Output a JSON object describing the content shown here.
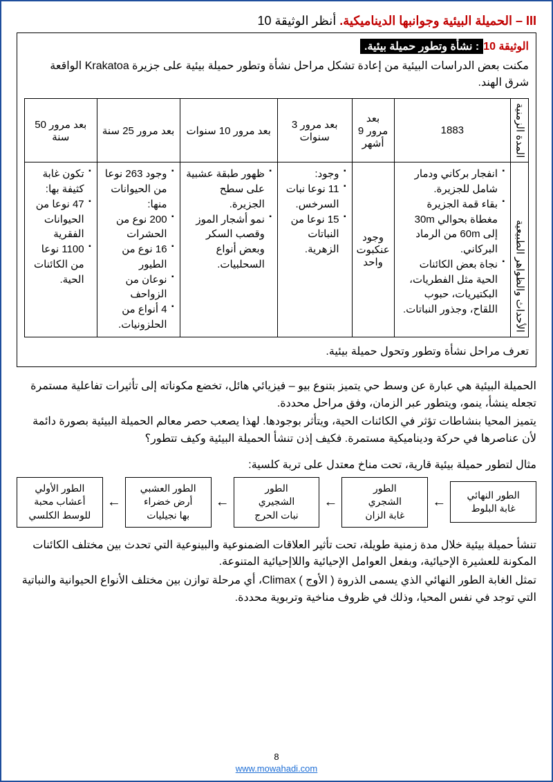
{
  "title_prefix": "III –",
  "title_main": "الحميلة البيئية وجوانبها الديناميكية.",
  "title_ref": "أنظر الوثيقة 10",
  "doc_label_prefix": "الوثيقة ",
  "doc_label_num": "10",
  "doc_label_title": ": نشأة وتطور حميلة بيئية.",
  "doc_intro": "مكنت بعض الدراسات البيئية من إعادة تشكل مراحل نشأة وتطور حميلة بيئية على جزيرة Krakatoa الواقعة شرق الهند.",
  "table": {
    "row_header_time": "المدة الزمنية",
    "row_header_events": "الأحداث والظواهر الطبيعية",
    "columns": [
      "1883",
      "بعد مرور 9 أشهر",
      "بعد مرور 3 سنوات",
      "بعد مرور 10 سنوات",
      "بعد مرور 25 سنة",
      "بعد مرور 50 سنة"
    ],
    "events": [
      [
        "انفجار بركاني ودمار شامل للجزيرة.",
        "بقاء قمة الجزيرة مغطاة بحوالي 30m إلى 60m من الرماد البركاني.",
        "نجاة بعض الكائنات الحية مثل الفطريات، البكتيريات، حبوب اللقاح، وجذور النباتات."
      ],
      [
        "وجود عنكبوت واحد"
      ],
      [
        "وجود:",
        "11 نوعا نبات السرخس.",
        "15 نوعا من النباتات الزهرية."
      ],
      [
        "ظهور طبقة عشبية على سطح الجزيرة.",
        "نمو أشجار الموز وقصب السكر وبعض أنواع السحلبيات."
      ],
      [
        "وجود 263 نوعا من الحيوانات منها:",
        "200 نوع من الحشرات",
        "16 نوع من الطيور",
        "نوعان من الزواحف",
        "4 أنواع من الحلزونيات."
      ],
      [
        "تكون غابة كثيفة بها:",
        "47 نوعا من الحيوانات الفقرية",
        "1100 نوعا من الكائنات الحية."
      ]
    ]
  },
  "task": "تعرف مراحل نشأة وتطور وتحول حميلة بيئية.",
  "body_paragraphs": [
    "الحميلة البيئية هي عبارة عن وسط حي يتميز بتنوع بيو – فيزيائي هائل، تخضع مكوناته إلى تأثيرات تفاعلية مستمرة تجعله ينشأ، ينمو، ويتطور عبر الزمان، وفق مراحل محددة.",
    "يتميز المحيا بنشاطات تؤثر في الكائنات الحية، ويتأثر بوجودها. لهذا يصعب حصر معالم الحميلة البيئية بصورة دائمة لأن عناصرها في حركة وديناميكية مستمرة. فكيف إذن تنشأ الحميلة البيئية وكيف تتطور؟"
  ],
  "example_label": "مثال لتطور حميلة بيئية قارية، تحت مناخ معتدل على تربة كلسية:",
  "flow": [
    "الطور الأولي\nأعشاب محبة\nللوسط الكلسي",
    "الطور العشبي\nأرض خضراء\nبها نجيليات",
    "الطور\nالشجيري\nنبات الحرج",
    "الطور\nالشجري\nغابة الزان",
    "الطور النهائي\nغابة البلوط"
  ],
  "closing": [
    "تنشأ حميلة بيئية خلال مدة زمنية طويلة، تحت تأثير العلاقات الضمنوعية والبينوعية التي تحدث بين مختلف الكائنات المكونة للعشيرة الإحيائية، وبفعل العوامل الإحيائية واللاإحيائية المتنوعة.",
    "تمثل الغابة الطور النهائي الذي يسمى الذروة ( الأوج ) Climax، أي مرحلة توازن بين مختلف الأنواع الحيوانية والنباتية التي توجد في نفس المحيا، وذلك في ظروف مناخية وتربوية محددة."
  ],
  "footer_page": "8",
  "footer_url": "www.mowahadi.com"
}
